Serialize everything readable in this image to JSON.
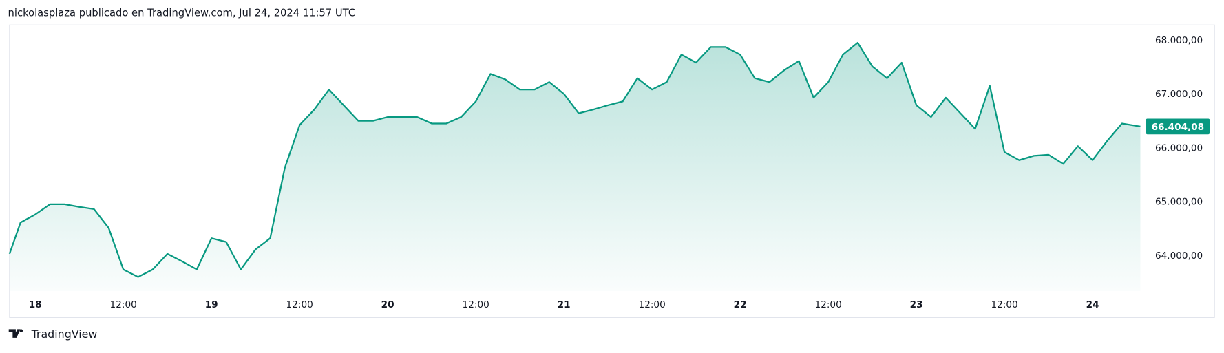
{
  "header": "nickolasplaza publicado en TradingView.com, Jul 24, 2024 11:57 UTC",
  "footer": "TradingView",
  "chart_data": {
    "type": "line",
    "color": "#089981",
    "x": [
      -3.5,
      -2,
      0,
      2,
      4,
      6,
      8,
      10,
      12,
      14,
      16,
      18,
      20,
      22,
      24,
      26,
      28,
      30,
      32,
      34,
      36,
      38,
      40,
      42,
      44,
      46,
      48,
      50,
      52,
      54,
      56,
      58,
      60,
      62,
      64,
      66,
      68,
      70,
      72,
      74,
      76,
      78,
      80,
      82,
      84,
      86,
      88,
      90,
      92,
      94,
      96,
      98,
      100,
      102,
      104,
      106,
      108,
      110,
      112,
      114,
      116,
      118,
      120,
      122,
      124,
      126,
      128,
      130,
      132,
      134,
      136,
      138,
      140,
      142,
      144,
      146,
      148,
      150.5
    ],
    "values": [
      64040,
      64620,
      64770,
      64960,
      64960,
      64910,
      64870,
      64520,
      63750,
      63610,
      63750,
      64040,
      63900,
      63750,
      64330,
      64260,
      63750,
      64120,
      64330,
      65640,
      66430,
      66720,
      67090,
      66800,
      66510,
      66510,
      66580,
      66580,
      66580,
      66460,
      66460,
      66580,
      66870,
      67380,
      67280,
      67090,
      67090,
      67230,
      67010,
      66650,
      66720,
      66800,
      66870,
      67300,
      67090,
      67230,
      67740,
      67590,
      67880,
      67880,
      67740,
      67300,
      67230,
      67450,
      67620,
      66940,
      67230,
      67740,
      67960,
      67520,
      67300,
      67590,
      66800,
      66580,
      66940,
      66650,
      66360,
      67160,
      65930,
      65780,
      65860,
      65880,
      65710,
      66040,
      65780,
      66140,
      66460,
      66404.08
    ],
    "last_value_label": "66.404,08",
    "xlim": [
      -3.5,
      150.5
    ],
    "xticks": [
      {
        "value": 0,
        "label": "18"
      },
      {
        "value": 12,
        "label": "12:00"
      },
      {
        "value": 24,
        "label": "19"
      },
      {
        "value": 36,
        "label": "12:00"
      },
      {
        "value": 48,
        "label": "20"
      },
      {
        "value": 60,
        "label": "12:00"
      },
      {
        "value": 72,
        "label": "21"
      },
      {
        "value": 84,
        "label": "12:00"
      },
      {
        "value": 96,
        "label": "22"
      },
      {
        "value": 108,
        "label": "12:00"
      },
      {
        "value": 120,
        "label": "23"
      },
      {
        "value": 132,
        "label": "12:00"
      },
      {
        "value": 144,
        "label": "24"
      }
    ],
    "ylim": [
      63350,
      68290
    ],
    "yticks": [
      {
        "value": 64000,
        "label": "64.000,00"
      },
      {
        "value": 65000,
        "label": "65.000,00"
      },
      {
        "value": 66000,
        "label": "66.000,00"
      },
      {
        "value": 67000,
        "label": "67.000,00"
      },
      {
        "value": 68000,
        "label": "68.000,00"
      }
    ]
  }
}
